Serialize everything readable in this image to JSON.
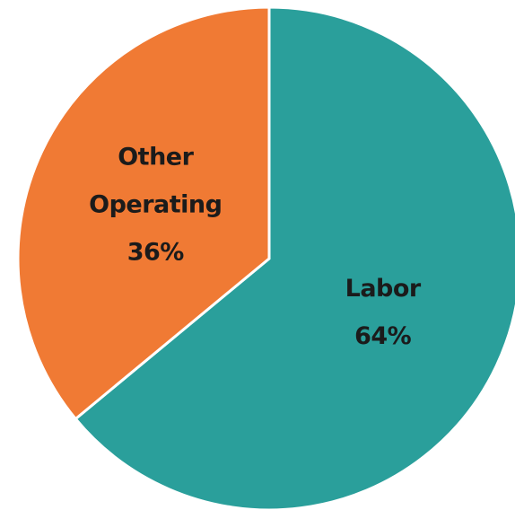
{
  "chart_data": {
    "type": "pie",
    "categories": [
      "Labor",
      "Other Operating"
    ],
    "values": [
      64,
      36
    ],
    "value_labels": [
      "64%",
      "36%"
    ],
    "colors": [
      "#2a9f9b",
      "#f07a34"
    ]
  }
}
